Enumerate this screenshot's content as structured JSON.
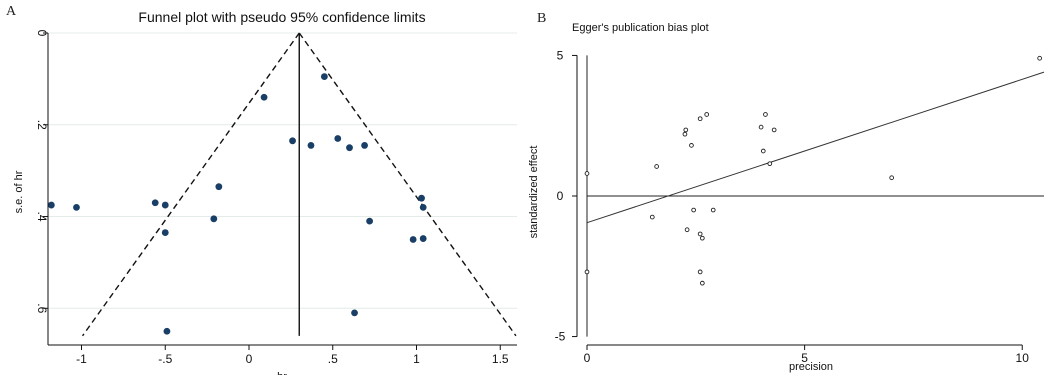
{
  "chart_data": [
    {
      "type": "scatter",
      "panel": "A",
      "title": "Funnel plot with pseudo 95% confidence limits",
      "xlabel": "hr",
      "ylabel": "s.e. of hr",
      "xlim": [
        -1.2,
        1.6
      ],
      "ylim": [
        0,
        0.68
      ],
      "y_reversed": true,
      "grid": true,
      "x_ticks": [
        -1,
        -0.5,
        0,
        0.5,
        1,
        1.5
      ],
      "x_tick_labels": [
        "-1",
        "-.5",
        "0",
        ".5",
        "1",
        "1.5"
      ],
      "y_ticks": [
        0,
        0.2,
        0.4,
        0.6
      ],
      "y_tick_labels": [
        "0",
        ".2",
        ".4",
        ".6"
      ],
      "pooled_estimate": 0.3,
      "funnel_bottom_se": 0.66,
      "points": [
        {
          "x": 0.45,
          "y": 0.095
        },
        {
          "x": 0.09,
          "y": 0.14
        },
        {
          "x": 0.26,
          "y": 0.235
        },
        {
          "x": 0.37,
          "y": 0.245
        },
        {
          "x": 0.53,
          "y": 0.23
        },
        {
          "x": 0.6,
          "y": 0.25
        },
        {
          "x": 0.69,
          "y": 0.245
        },
        {
          "x": -0.18,
          "y": 0.335
        },
        {
          "x": -1.18,
          "y": 0.375
        },
        {
          "x": -1.03,
          "y": 0.38
        },
        {
          "x": -0.56,
          "y": 0.37
        },
        {
          "x": -0.5,
          "y": 0.375
        },
        {
          "x": -0.21,
          "y": 0.405
        },
        {
          "x": -0.5,
          "y": 0.435
        },
        {
          "x": 0.72,
          "y": 0.41
        },
        {
          "x": 1.03,
          "y": 0.36
        },
        {
          "x": 1.04,
          "y": 0.38
        },
        {
          "x": 0.98,
          "y": 0.45
        },
        {
          "x": 1.04,
          "y": 0.448
        },
        {
          "x": 0.63,
          "y": 0.61
        },
        {
          "x": -0.49,
          "y": 0.65
        }
      ]
    },
    {
      "type": "scatter",
      "panel": "B",
      "title": "Egger's publication bias plot",
      "xlabel": "precision",
      "ylabel": "standardized effect",
      "xlim": [
        0,
        10.5
      ],
      "ylim": [
        -5.3,
        5.3
      ],
      "grid": false,
      "x_ticks": [
        0,
        5,
        10
      ],
      "x_tick_labels": [
        "0",
        "5",
        "10"
      ],
      "y_ticks": [
        -5,
        0,
        5
      ],
      "y_tick_labels": [
        "-5",
        "0",
        "5"
      ],
      "regression_line": {
        "intercept": -0.95,
        "slope": 0.51
      },
      "points": [
        {
          "x": 0,
          "y": 0.8
        },
        {
          "x": 0,
          "y": -2.7
        },
        {
          "x": 1.6,
          "y": 1.05
        },
        {
          "x": 1.5,
          "y": -0.75
        },
        {
          "x": 2.25,
          "y": 2.2
        },
        {
          "x": 2.27,
          "y": 2.35
        },
        {
          "x": 2.4,
          "y": 1.8
        },
        {
          "x": 2.6,
          "y": 2.75
        },
        {
          "x": 2.75,
          "y": 2.9
        },
        {
          "x": 2.45,
          "y": -0.5
        },
        {
          "x": 2.3,
          "y": -1.2
        },
        {
          "x": 2.6,
          "y": -1.35
        },
        {
          "x": 2.65,
          "y": -1.5
        },
        {
          "x": 2.9,
          "y": -0.5
        },
        {
          "x": 2.6,
          "y": -2.7
        },
        {
          "x": 2.65,
          "y": -3.1
        },
        {
          "x": 4.0,
          "y": 2.45
        },
        {
          "x": 4.1,
          "y": 2.9
        },
        {
          "x": 4.05,
          "y": 1.6
        },
        {
          "x": 4.3,
          "y": 2.35
        },
        {
          "x": 4.2,
          "y": 1.15
        },
        {
          "x": 7.0,
          "y": 0.65
        },
        {
          "x": 10.4,
          "y": 4.9
        }
      ]
    }
  ]
}
